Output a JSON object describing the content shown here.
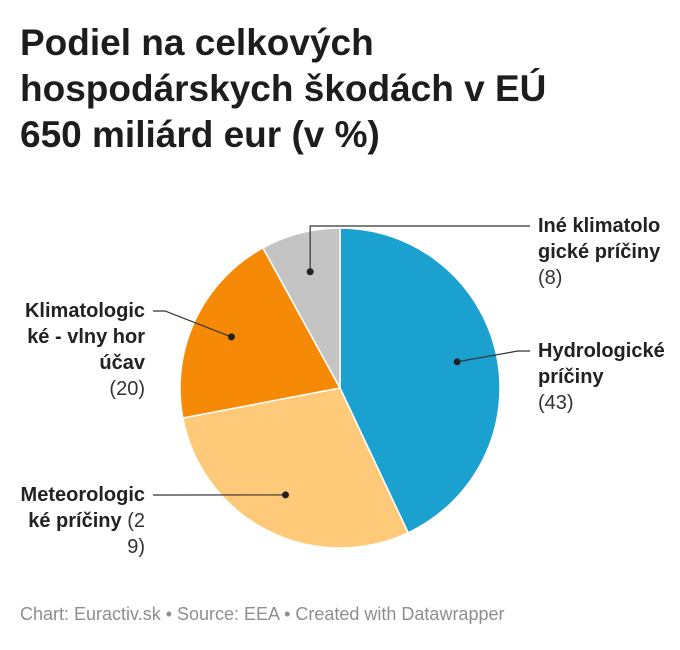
{
  "chart_data": {
    "type": "pie",
    "title": "Podiel na celkových hospodárskych škodách v EÚ 650 miliárd eur (v %)",
    "categories": [
      "Hydrologické príčiny",
      "Meteorologické príčiny",
      "Klimatologické - vlny horúčav",
      "Iné klimatologické príčiny"
    ],
    "values": [
      43,
      29,
      20,
      8
    ],
    "value_labels": [
      "(43)",
      "(29)",
      "(20)",
      "(8)"
    ],
    "colors": [
      "#1aa1d0",
      "#fec978",
      "#f68a07",
      "#c4c4c4"
    ],
    "footer": "Chart: Euractiv.sk • Source: EEA • Created with Datawrapper"
  }
}
